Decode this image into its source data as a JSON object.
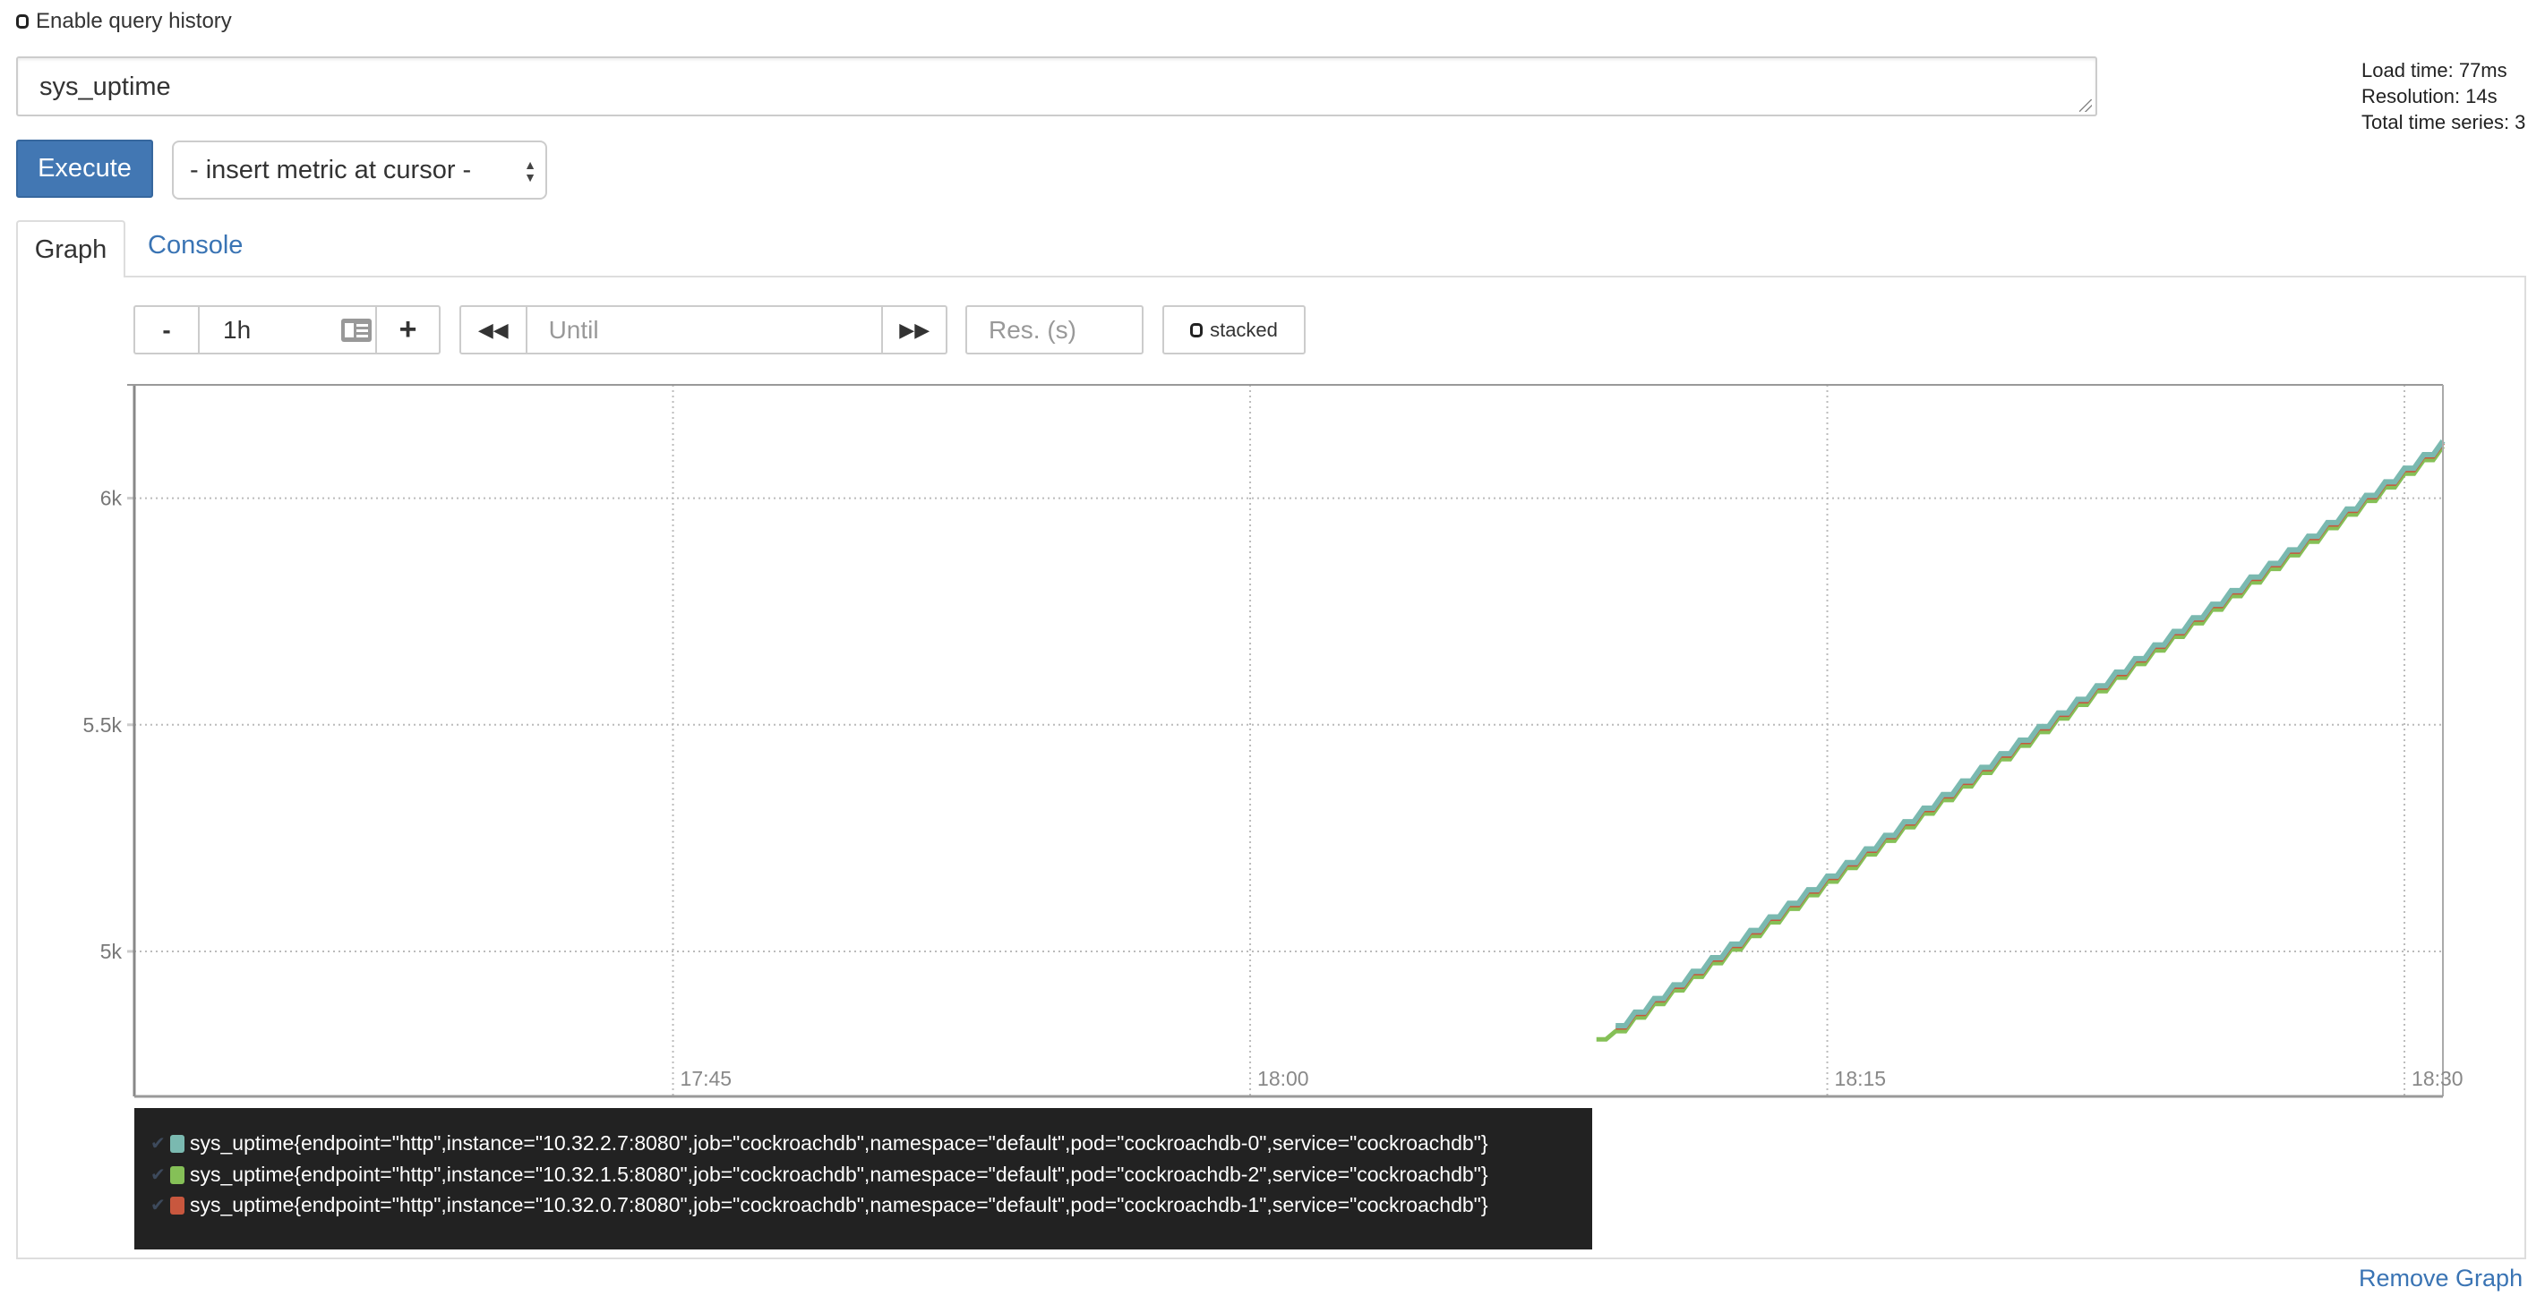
{
  "query_history": {
    "label": "Enable query history",
    "checked": false
  },
  "expression": {
    "value": "sys_uptime"
  },
  "stats": {
    "load_time": "Load time: 77ms",
    "resolution": "Resolution: 14s",
    "total_series": "Total time series: 3"
  },
  "toolbar": {
    "execute_label": "Execute",
    "insert_metric": "- insert metric at cursor -"
  },
  "tabs": [
    {
      "label": "Graph",
      "active": true
    },
    {
      "label": "Console",
      "active": false
    }
  ],
  "graph_controls": {
    "range_minus": "-",
    "range_value": "1h",
    "range_plus": "+",
    "until_placeholder": "Until",
    "resolution_placeholder": "Res. (s)",
    "stacked_label": "stacked",
    "stacked_checked": false
  },
  "chart_data": {
    "type": "line",
    "xlim": [
      "17:31",
      "18:31"
    ],
    "ylim": [
      4680,
      6250
    ],
    "x_ticks": [
      "17:45",
      "18:00",
      "18:15",
      "18:30"
    ],
    "y_ticks": [
      "5k",
      "5.5k",
      "6k"
    ],
    "y_tick_values": [
      5000,
      5500,
      6000
    ],
    "grid": true,
    "x": [
      "18:09:00",
      "18:09:30",
      "18:10:00",
      "18:10:30",
      "18:11:00",
      "18:11:30",
      "18:12:00",
      "18:12:30",
      "18:13:00",
      "18:13:30",
      "18:14:00",
      "18:14:30",
      "18:15:00",
      "18:15:30",
      "18:16:00",
      "18:16:30",
      "18:17:00",
      "18:17:30",
      "18:18:00",
      "18:18:30",
      "18:19:00",
      "18:19:30",
      "18:20:00",
      "18:20:30",
      "18:21:00",
      "18:21:30",
      "18:22:00",
      "18:22:30",
      "18:23:00",
      "18:23:30",
      "18:24:00",
      "18:24:30",
      "18:25:00",
      "18:25:30",
      "18:26:00",
      "18:26:30",
      "18:27:00",
      "18:27:30",
      "18:28:00",
      "18:28:30",
      "18:29:00",
      "18:29:30",
      "18:30:00",
      "18:30:30",
      "18:31:00"
    ],
    "series": [
      {
        "name": "sys_uptime{endpoint=\"http\",instance=\"10.32.2.7:8080\",job=\"cockroachdb\",namespace=\"default\",pod=\"cockroachdb-0\",service=\"cockroachdb\"}",
        "color": "#7ab9b0",
        "values": [
          null,
          4836,
          4866,
          4896,
          4926,
          4956,
          4986,
          5016,
          5046,
          5076,
          5106,
          5136,
          5166,
          5196,
          5226,
          5256,
          5286,
          5316,
          5346,
          5376,
          5406,
          5436,
          5466,
          5496,
          5526,
          5556,
          5586,
          5616,
          5646,
          5676,
          5706,
          5736,
          5766,
          5796,
          5826,
          5856,
          5886,
          5916,
          5946,
          5976,
          6006,
          6036,
          6066,
          6096,
          6126
        ]
      },
      {
        "name": "sys_uptime{endpoint=\"http\",instance=\"10.32.1.5:8080\",job=\"cockroachdb\",namespace=\"default\",pod=\"cockroachdb-2\",service=\"cockroachdb\"}",
        "color": "#85c057",
        "values": [
          4806,
          4824,
          4854,
          4884,
          4914,
          4944,
          4974,
          5004,
          5034,
          5064,
          5094,
          5124,
          5154,
          5184,
          5214,
          5244,
          5274,
          5304,
          5334,
          5364,
          5394,
          5424,
          5454,
          5484,
          5514,
          5544,
          5574,
          5604,
          5634,
          5664,
          5694,
          5724,
          5754,
          5784,
          5814,
          5844,
          5874,
          5904,
          5934,
          5964,
          5994,
          6024,
          6054,
          6084,
          6114
        ]
      },
      {
        "name": "sys_uptime{endpoint=\"http\",instance=\"10.32.0.7:8080\",job=\"cockroachdb\",namespace=\"default\",pod=\"cockroachdb-1\",service=\"cockroachdb\"}",
        "color": "#c8573e",
        "values": [
          null,
          4832,
          4862,
          4892,
          4922,
          4952,
          4982,
          5012,
          5042,
          5072,
          5102,
          5132,
          5162,
          5192,
          5222,
          5252,
          5282,
          5312,
          5342,
          5372,
          5402,
          5432,
          5462,
          5492,
          5522,
          5552,
          5582,
          5612,
          5642,
          5672,
          5702,
          5732,
          5762,
          5792,
          5822,
          5852,
          5882,
          5912,
          5942,
          5972,
          6002,
          6032,
          6062,
          6092,
          6122
        ]
      }
    ]
  },
  "remove_graph_label": "Remove Graph"
}
